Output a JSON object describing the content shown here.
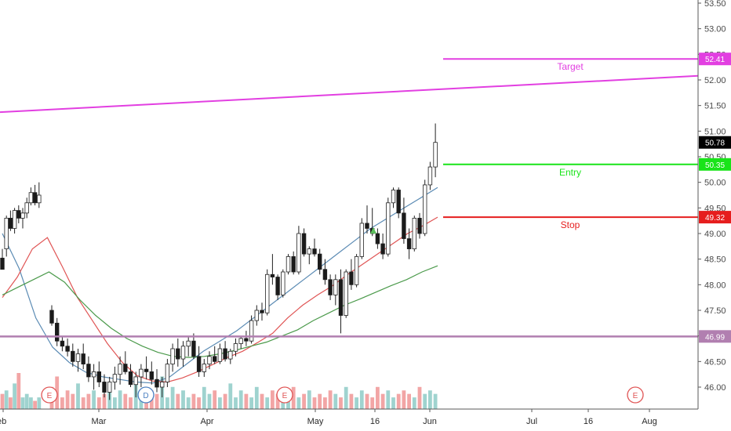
{
  "chart_data": {
    "type": "candlestick",
    "y_axis": {
      "ticks": [
        "53.50",
        "53.00",
        "52.50",
        "52.00",
        "51.50",
        "51.00",
        "50.50",
        "50.00",
        "49.50",
        "49.00",
        "48.50",
        "48.00",
        "47.50",
        "47.00",
        "46.50",
        "46.00"
      ],
      "range": [
        45.75,
        53.55
      ]
    },
    "x_axis": {
      "ticks": [
        "eb",
        "Mar",
        "Apr",
        "May",
        "16",
        "Jun",
        "Jul",
        "16",
        "Aug"
      ]
    },
    "last_price": "50.78",
    "price_badges": [
      {
        "text": "52.41",
        "value": 52.41,
        "color": "#e23fe1"
      },
      {
        "text": "50.78",
        "value": 50.78,
        "color": "#000000"
      },
      {
        "text": "50.35",
        "value": 50.35,
        "color": "#19e419"
      },
      {
        "text": "49.32",
        "value": 49.32,
        "color": "#e61e1e"
      },
      {
        "text": "46.99",
        "value": 46.99,
        "color": "#b17fb0"
      }
    ],
    "levels": [
      {
        "label": "Target",
        "value": 52.41,
        "color": "#e23fe1"
      },
      {
        "label": "Entry",
        "value": 50.35,
        "color": "#19e419"
      },
      {
        "label": "Stop",
        "value": 49.32,
        "color": "#e61e1e"
      },
      {
        "label": "",
        "value": 46.99,
        "color": "#b17fb0"
      }
    ],
    "trendline": {
      "from": 51.37,
      "to": 52.08,
      "color": "#e23fe1"
    },
    "candles": [
      [
        48.52,
        48.7,
        48.3,
        48.3
      ],
      [
        48.7,
        49.35,
        48.55,
        49.3
      ],
      [
        49.3,
        49.45,
        49.05,
        49.1
      ],
      [
        49.1,
        49.5,
        49.0,
        49.45
      ],
      [
        49.45,
        49.55,
        49.2,
        49.3
      ],
      [
        49.3,
        49.5,
        49.1,
        49.4
      ],
      [
        49.4,
        49.7,
        49.3,
        49.6
      ],
      [
        49.6,
        49.9,
        49.55,
        49.8
      ],
      [
        49.8,
        49.95,
        49.55,
        49.6
      ],
      [
        49.6,
        50.0,
        49.5,
        49.75
      ],
      [
        47.5,
        47.6,
        47.2,
        47.25
      ],
      [
        47.25,
        47.35,
        46.8,
        46.9
      ],
      [
        46.9,
        47.0,
        46.7,
        46.8
      ],
      [
        46.8,
        46.95,
        46.6,
        46.7
      ],
      [
        46.7,
        46.85,
        46.4,
        46.5
      ],
      [
        46.5,
        46.75,
        46.3,
        46.65
      ],
      [
        46.65,
        46.85,
        46.35,
        46.45
      ],
      [
        46.45,
        46.6,
        46.1,
        46.2
      ],
      [
        46.2,
        46.45,
        45.95,
        46.3
      ],
      [
        46.3,
        46.5,
        46.0,
        46.1
      ],
      [
        46.1,
        46.25,
        45.8,
        45.9
      ],
      [
        45.9,
        46.2,
        45.75,
        46.1
      ],
      [
        46.1,
        46.4,
        45.95,
        46.25
      ],
      [
        46.25,
        46.6,
        46.05,
        46.45
      ],
      [
        46.45,
        46.7,
        46.25,
        46.3
      ],
      [
        46.3,
        46.45,
        46.0,
        46.05
      ],
      [
        46.05,
        46.3,
        45.8,
        46.2
      ],
      [
        46.2,
        46.45,
        46.0,
        46.35
      ],
      [
        46.35,
        46.6,
        46.15,
        46.3
      ],
      [
        46.3,
        46.5,
        46.05,
        46.15
      ],
      [
        46.15,
        46.35,
        45.9,
        46.0
      ],
      [
        46.0,
        46.2,
        45.8,
        46.1
      ],
      [
        46.1,
        46.55,
        46.0,
        46.45
      ],
      [
        46.45,
        46.85,
        46.3,
        46.75
      ],
      [
        46.75,
        46.95,
        46.4,
        46.55
      ],
      [
        46.55,
        46.9,
        46.4,
        46.8
      ],
      [
        46.8,
        47.0,
        46.6,
        46.9
      ],
      [
        46.9,
        47.05,
        46.55,
        46.6
      ],
      [
        46.6,
        46.8,
        46.2,
        46.3
      ],
      [
        46.3,
        46.55,
        46.2,
        46.45
      ],
      [
        46.45,
        46.7,
        46.35,
        46.6
      ],
      [
        46.6,
        46.8,
        46.45,
        46.5
      ],
      [
        46.5,
        46.85,
        46.45,
        46.75
      ],
      [
        46.75,
        46.9,
        46.5,
        46.55
      ],
      [
        46.55,
        46.75,
        46.45,
        46.7
      ],
      [
        46.7,
        46.95,
        46.6,
        46.85
      ],
      [
        46.85,
        47.0,
        46.75,
        46.95
      ],
      [
        46.95,
        47.1,
        46.8,
        46.9
      ],
      [
        46.9,
        47.4,
        46.85,
        47.3
      ],
      [
        47.3,
        47.6,
        47.2,
        47.5
      ],
      [
        47.5,
        47.65,
        47.3,
        47.45
      ],
      [
        47.45,
        48.3,
        47.4,
        48.2
      ],
      [
        48.2,
        48.6,
        48.0,
        48.15
      ],
      [
        48.15,
        48.2,
        47.7,
        47.8
      ],
      [
        47.8,
        48.3,
        47.75,
        48.25
      ],
      [
        48.25,
        48.6,
        48.2,
        48.55
      ],
      [
        48.55,
        48.65,
        48.2,
        48.25
      ],
      [
        48.25,
        49.15,
        48.2,
        49.0
      ],
      [
        49.0,
        49.1,
        48.55,
        48.6
      ],
      [
        48.6,
        48.75,
        48.4,
        48.7
      ],
      [
        48.7,
        48.9,
        48.55,
        48.6
      ],
      [
        48.6,
        48.7,
        48.2,
        48.3
      ],
      [
        48.3,
        48.5,
        48.0,
        48.1
      ],
      [
        48.1,
        48.2,
        47.7,
        47.8
      ],
      [
        47.8,
        48.2,
        47.6,
        48.1
      ],
      [
        48.1,
        48.3,
        47.05,
        47.4
      ],
      [
        47.4,
        48.3,
        47.35,
        48.25
      ],
      [
        48.25,
        48.5,
        47.9,
        48.0
      ],
      [
        48.0,
        48.6,
        47.95,
        48.55
      ],
      [
        48.55,
        49.3,
        48.5,
        49.2
      ],
      [
        49.2,
        49.55,
        49.0,
        49.1
      ],
      [
        49.1,
        49.5,
        48.95,
        49.0
      ],
      [
        49.0,
        49.1,
        48.7,
        48.8
      ],
      [
        48.8,
        49.0,
        48.5,
        48.6
      ],
      [
        48.6,
        49.7,
        48.55,
        49.6
      ],
      [
        49.6,
        49.9,
        49.5,
        49.85
      ],
      [
        49.85,
        49.9,
        49.3,
        49.4
      ],
      [
        49.4,
        49.7,
        48.8,
        48.9
      ],
      [
        48.9,
        49.1,
        48.5,
        48.7
      ],
      [
        48.7,
        49.35,
        48.65,
        49.3
      ],
      [
        49.3,
        49.4,
        48.9,
        49.0
      ],
      [
        49.0,
        50.05,
        48.95,
        49.95
      ],
      [
        49.95,
        50.4,
        49.85,
        50.3
      ],
      [
        50.3,
        51.15,
        50.1,
        50.78
      ]
    ],
    "averages": [
      {
        "name": "",
        "color": "#5b8bb4",
        "values": [
          49.0,
          48.32,
          47.35,
          46.78,
          46.48,
          46.29,
          46.2,
          46.15,
          46.1,
          46.08,
          46.2,
          46.45,
          46.7,
          46.9,
          47.1,
          47.35,
          47.6,
          47.85,
          48.1,
          48.35,
          48.6,
          48.85,
          49.1,
          49.3,
          49.5,
          49.7,
          49.9
        ]
      },
      {
        "name": "",
        "color": "#e05555",
        "values": [
          47.75,
          48.15,
          48.7,
          48.92,
          48.35,
          47.75,
          47.3,
          46.85,
          46.48,
          46.22,
          46.12,
          46.1,
          46.18,
          46.3,
          46.44,
          46.58,
          46.7,
          46.87,
          47.05,
          47.35,
          47.6,
          47.8,
          47.98,
          48.2,
          48.4,
          48.6,
          48.8,
          49.0,
          49.15,
          49.32
        ]
      },
      {
        "name": "",
        "color": "#4b9a4b",
        "values": [
          47.8,
          47.95,
          48.1,
          48.25,
          48.05,
          47.7,
          47.4,
          47.15,
          46.95,
          46.8,
          46.68,
          46.6,
          46.58,
          46.6,
          46.65,
          46.72,
          46.8,
          46.88,
          47.0,
          47.12,
          47.3,
          47.45,
          47.6,
          47.72,
          47.85,
          47.98,
          48.1,
          48.25,
          48.37
        ]
      }
    ],
    "volume": [
      3,
      4,
      2,
      6,
      9,
      2,
      3,
      2,
      1,
      2,
      5,
      8,
      2,
      4,
      3,
      6,
      2,
      3,
      4,
      2,
      3,
      5,
      2,
      4,
      3,
      2,
      6,
      3,
      2,
      4,
      3,
      8,
      2,
      5,
      3,
      4,
      2,
      3,
      2,
      5,
      3,
      4,
      2,
      3,
      6,
      2,
      4,
      3,
      2,
      5,
      3,
      2,
      4,
      3,
      2,
      3,
      5,
      2,
      3,
      4,
      2,
      3,
      2,
      4,
      3,
      2,
      5,
      3,
      2,
      4,
      3,
      2,
      5,
      3,
      4,
      2,
      3,
      4,
      3,
      2,
      5,
      3,
      4,
      3
    ],
    "events": [
      {
        "letter": "E",
        "color": "#e05555"
      },
      {
        "letter": "D",
        "color": "#4a7fc1"
      },
      {
        "letter": "E",
        "color": "#e05555"
      },
      {
        "letter": "E",
        "color": "#e05555"
      }
    ]
  }
}
